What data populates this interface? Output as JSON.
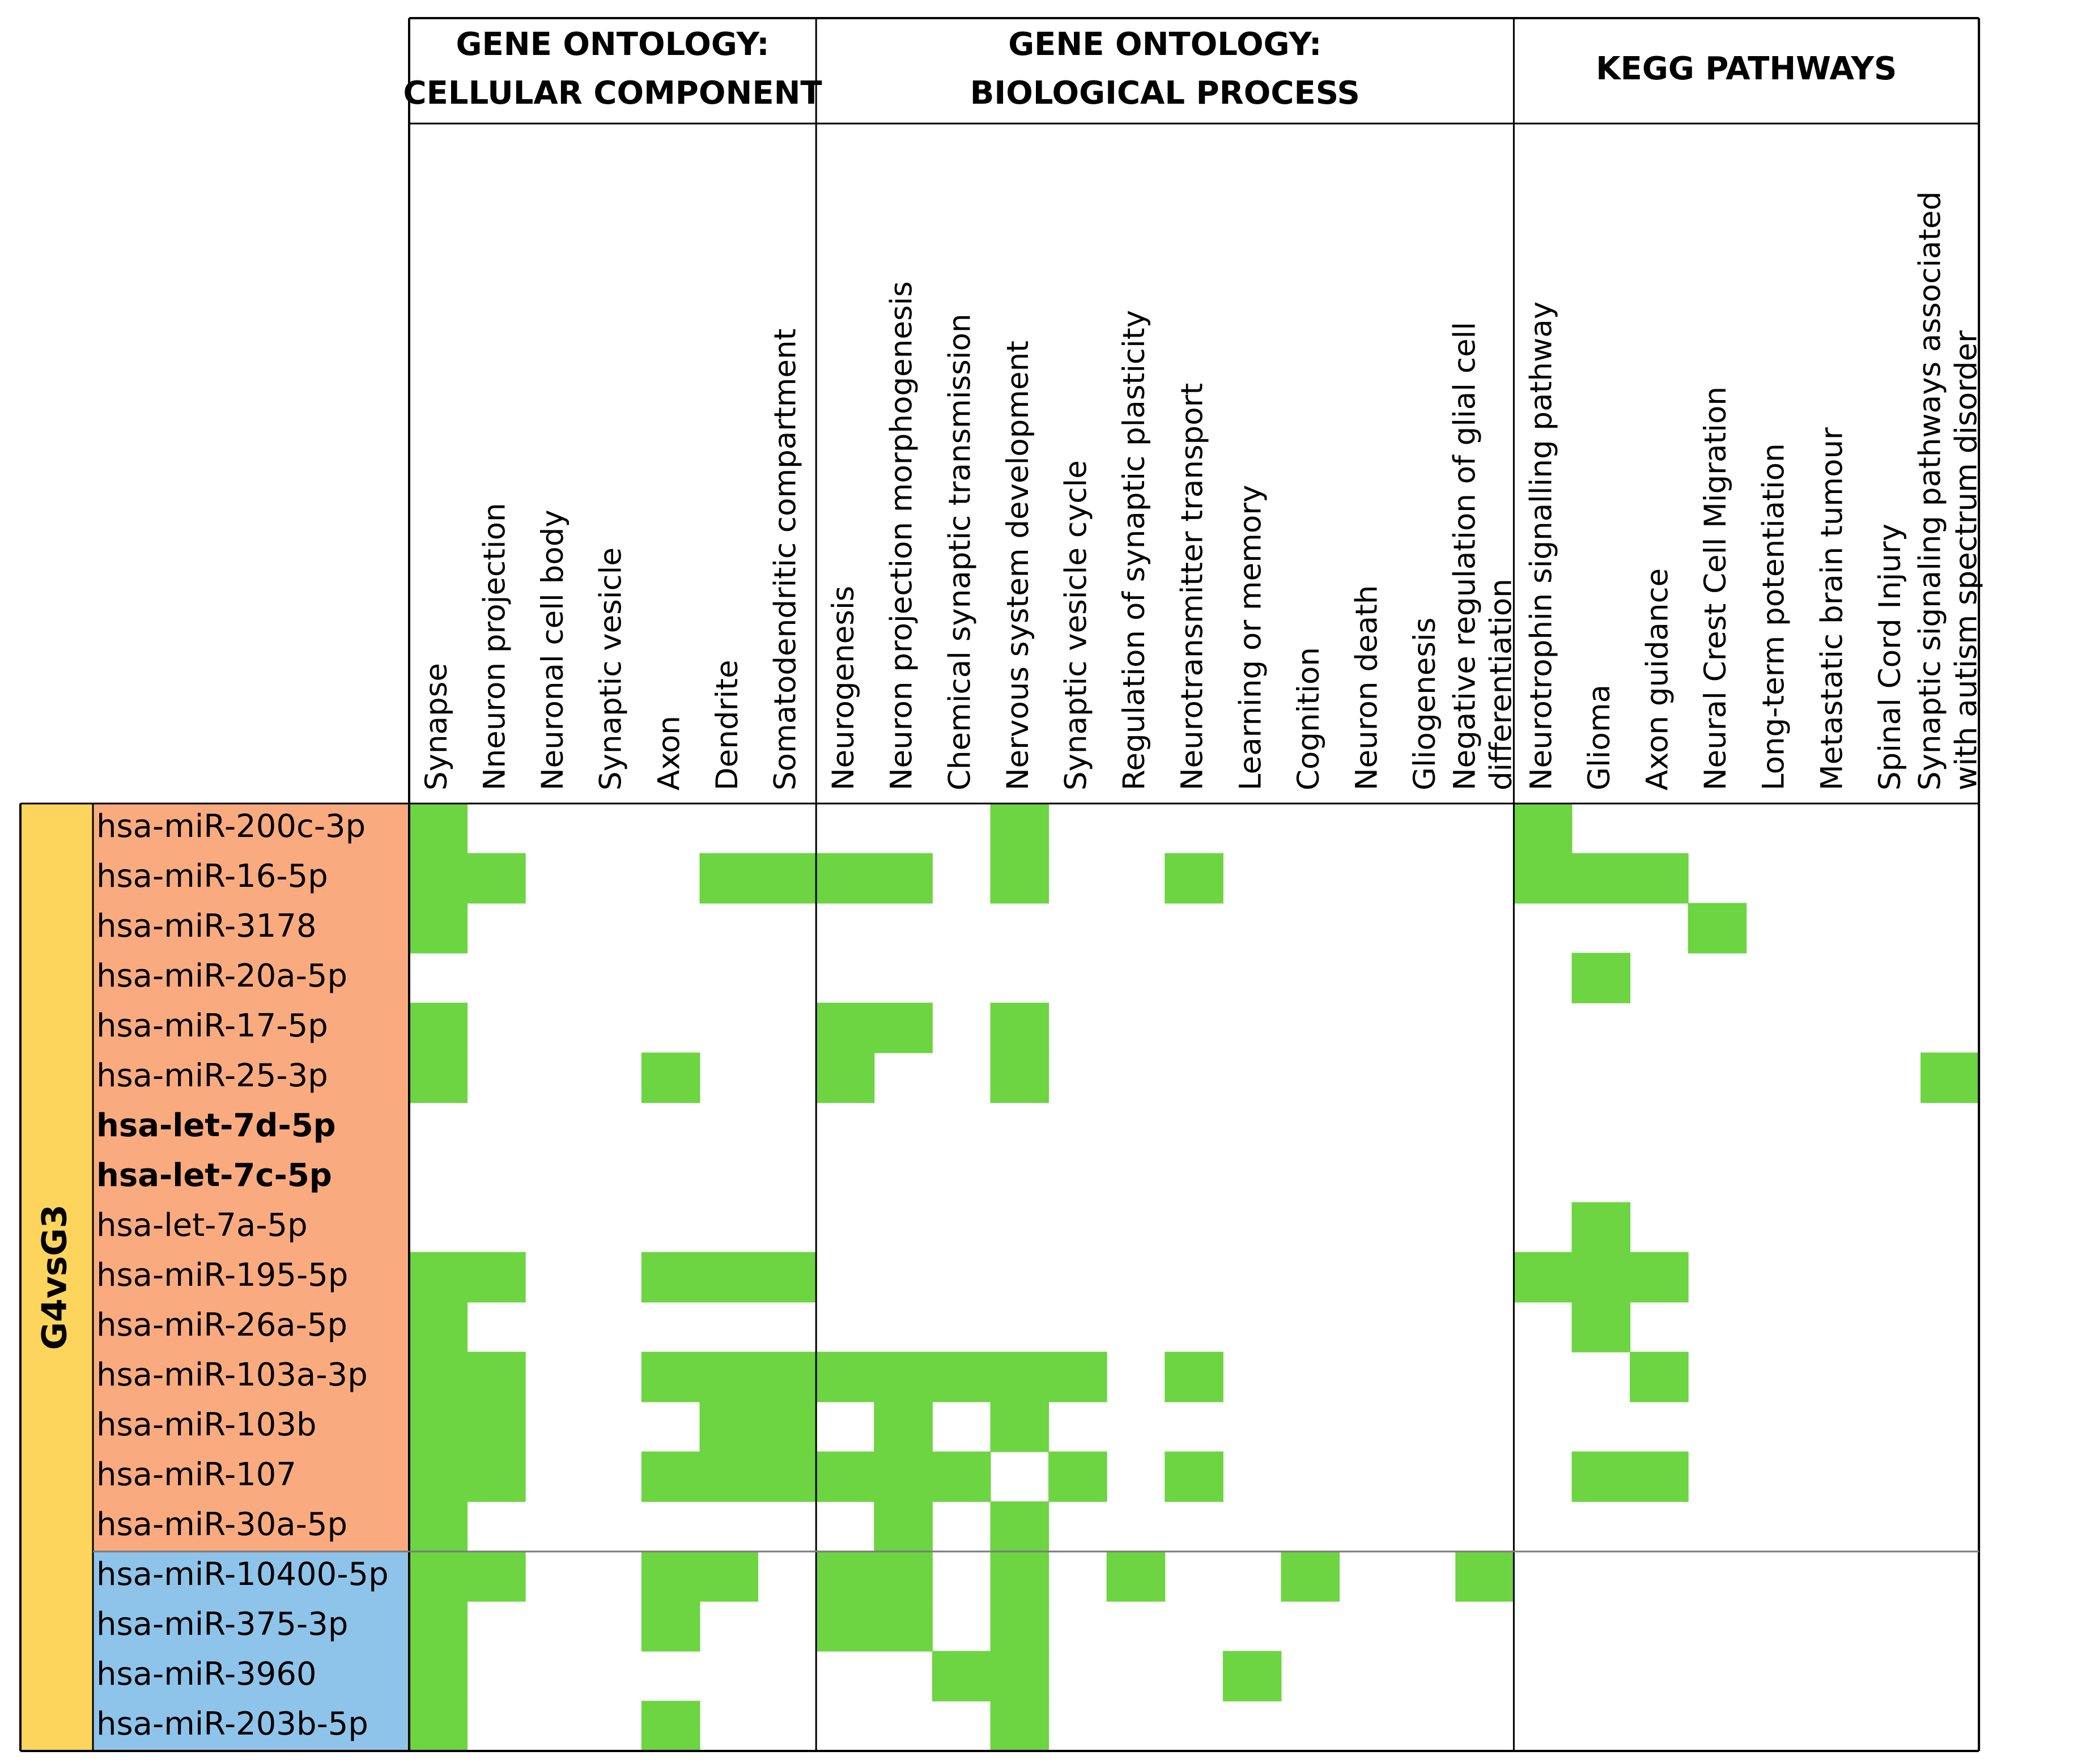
{
  "chart_data": {
    "type": "heatmap",
    "colors": {
      "hit": "#6dd442",
      "upper_rows": "#f9ab7f",
      "lower_rows": "#8fc4ea",
      "group_band": "#fdd55c",
      "highlight_text": "#ff0000"
    },
    "group_label": "G4vsG3",
    "column_groups": [
      {
        "title_lines": [
          "GENE ONTOLOGY:",
          "CELLULAR COMPONENT"
        ],
        "columns": [
          "Synapse",
          "Nneuron projection",
          "Neuronal cell body",
          "Synaptic vesicle",
          "Axon",
          "Dendrite",
          "Somatodendritic compartment"
        ]
      },
      {
        "title_lines": [
          "GENE ONTOLOGY:",
          "BIOLOGICAL PROCESS"
        ],
        "columns": [
          "Neurogenesis",
          "Neuron projection morphogenesis",
          "Chemical synaptic transmission",
          "Nervous system development",
          "Synaptic vesicle cycle",
          "Regulation of synaptic plasticity",
          "Neurotransmitter transport",
          "Learning or memory",
          "Cognition",
          "Neuron death",
          "Gliogenesis",
          "Negative regulation of glial cell differentiation"
        ]
      },
      {
        "title_lines": [
          "KEGG PATHWAYS"
        ],
        "columns": [
          "Neurotrophin signalling pathway",
          "Glioma",
          "Axon guidance",
          "Neural Crest Cell Migration",
          "Long-term potentiation",
          "Metastatic brain tumour",
          "Spinal Cord Injury",
          "Synaptic signaling pathways associated with autism spectrum disorder"
        ]
      }
    ],
    "column_label_lines": [
      [
        "Synapse"
      ],
      [
        "Nneuron projection"
      ],
      [
        "Neuronal cell body"
      ],
      [
        "Synaptic vesicle"
      ],
      [
        "Axon"
      ],
      [
        "Dendrite"
      ],
      [
        "Somatodendritic compartment"
      ],
      [
        "Neurogenesis"
      ],
      [
        "Neuron projection morphogenesis"
      ],
      [
        "Chemical synaptic transmission"
      ],
      [
        "Nervous system development"
      ],
      [
        "Synaptic vesicle cycle"
      ],
      [
        "Regulation of synaptic plasticity"
      ],
      [
        "Neurotransmitter transport"
      ],
      [
        "Learning or memory"
      ],
      [
        "Cognition"
      ],
      [
        "Neuron death"
      ],
      [
        "Gliogenesis"
      ],
      [
        "Negative regulation of glial cell",
        "differentiation"
      ],
      [
        "Neurotrophin signalling pathway"
      ],
      [
        "Glioma"
      ],
      [
        "Axon guidance"
      ],
      [
        "Neural Crest Cell Migration"
      ],
      [
        "Long-term potentiation"
      ],
      [
        "Metastatic brain tumour"
      ],
      [
        "Spinal Cord Injury"
      ],
      [
        "Synaptic signaling pathways associated",
        "with autism spectrum disorder"
      ]
    ],
    "rows": [
      {
        "label": "hsa-miR-200c-3p",
        "cluster": "upper",
        "highlight": false
      },
      {
        "label": "hsa-miR-16-5p",
        "cluster": "upper",
        "highlight": false
      },
      {
        "label": "hsa-miR-3178",
        "cluster": "upper",
        "highlight": false
      },
      {
        "label": "hsa-miR-20a-5p",
        "cluster": "upper",
        "highlight": false
      },
      {
        "label": "hsa-miR-17-5p",
        "cluster": "upper",
        "highlight": false
      },
      {
        "label": "hsa-miR-25-3p",
        "cluster": "upper",
        "highlight": false
      },
      {
        "label": "hsa-let-7d-5p",
        "cluster": "upper",
        "highlight": true
      },
      {
        "label": "hsa-let-7c-5p",
        "cluster": "upper",
        "highlight": true
      },
      {
        "label": "hsa-let-7a-5p",
        "cluster": "upper",
        "highlight": false
      },
      {
        "label": "hsa-miR-195-5p",
        "cluster": "upper",
        "highlight": false
      },
      {
        "label": "hsa-miR-26a-5p",
        "cluster": "upper",
        "highlight": false
      },
      {
        "label": "hsa-miR-103a-3p",
        "cluster": "upper",
        "highlight": false
      },
      {
        "label": "hsa-miR-103b",
        "cluster": "upper",
        "highlight": false
      },
      {
        "label": "hsa-miR-107",
        "cluster": "upper",
        "highlight": false
      },
      {
        "label": "hsa-miR-30a-5p",
        "cluster": "upper",
        "highlight": false
      },
      {
        "label": "hsa-miR-10400-5p",
        "cluster": "lower",
        "highlight": false
      },
      {
        "label": "hsa-miR-375-3p",
        "cluster": "lower",
        "highlight": false
      },
      {
        "label": "hsa-miR-3960",
        "cluster": "lower",
        "highlight": false
      },
      {
        "label": "hsa-miR-203b-5p",
        "cluster": "lower",
        "highlight": false
      }
    ],
    "matrix": [
      [
        1,
        0,
        0,
        0,
        0,
        0,
        0,
        0,
        0,
        0,
        1,
        0,
        0,
        0,
        0,
        0,
        0,
        0,
        0,
        1,
        0,
        0,
        0,
        0,
        0,
        0,
        0
      ],
      [
        1,
        1,
        0,
        0,
        0,
        1,
        1,
        1,
        1,
        0,
        1,
        0,
        0,
        1,
        0,
        0,
        0,
        0,
        0,
        1,
        1,
        1,
        0,
        0,
        0,
        0,
        0
      ],
      [
        1,
        0,
        0,
        0,
        0,
        0,
        0,
        0,
        0,
        0,
        0,
        0,
        0,
        0,
        0,
        0,
        0,
        0,
        0,
        0,
        0,
        0,
        1,
        0,
        0,
        0,
        0
      ],
      [
        0,
        0,
        0,
        0,
        0,
        0,
        0,
        0,
        0,
        0,
        0,
        0,
        0,
        0,
        0,
        0,
        0,
        0,
        0,
        0,
        1,
        0,
        0,
        0,
        0,
        0,
        0
      ],
      [
        1,
        0,
        0,
        0,
        0,
        0,
        0,
        1,
        1,
        0,
        1,
        0,
        0,
        0,
        0,
        0,
        0,
        0,
        0,
        0,
        0,
        0,
        0,
        0,
        0,
        0,
        0
      ],
      [
        1,
        0,
        0,
        0,
        1,
        0,
        0,
        1,
        0,
        0,
        1,
        0,
        0,
        0,
        0,
        0,
        0,
        0,
        0,
        0,
        0,
        0,
        0,
        0,
        0,
        0,
        1
      ],
      [
        0,
        0,
        0,
        0,
        0,
        0,
        0,
        0,
        0,
        0,
        0,
        0,
        0,
        0,
        0,
        0,
        0,
        0,
        0,
        0,
        0,
        0,
        0,
        0,
        0,
        0,
        0
      ],
      [
        0,
        0,
        0,
        0,
        0,
        0,
        0,
        0,
        0,
        0,
        0,
        0,
        0,
        0,
        0,
        0,
        0,
        0,
        0,
        0,
        0,
        0,
        0,
        0,
        0,
        0,
        0
      ],
      [
        0,
        0,
        0,
        0,
        0,
        0,
        0,
        0,
        0,
        0,
        0,
        0,
        0,
        0,
        0,
        0,
        0,
        0,
        0,
        0,
        1,
        0,
        0,
        0,
        0,
        0,
        0
      ],
      [
        1,
        1,
        0,
        0,
        1,
        1,
        1,
        0,
        0,
        0,
        0,
        0,
        0,
        0,
        0,
        0,
        0,
        0,
        0,
        1,
        1,
        1,
        0,
        0,
        0,
        0,
        0
      ],
      [
        1,
        0,
        0,
        0,
        0,
        0,
        0,
        0,
        0,
        0,
        0,
        0,
        0,
        0,
        0,
        0,
        0,
        0,
        0,
        0,
        1,
        0,
        0,
        0,
        0,
        0,
        0
      ],
      [
        1,
        1,
        0,
        0,
        1,
        1,
        1,
        1,
        1,
        1,
        1,
        1,
        0,
        1,
        0,
        0,
        0,
        0,
        0,
        0,
        0,
        1,
        0,
        0,
        0,
        0,
        0
      ],
      [
        1,
        1,
        0,
        0,
        0,
        1,
        1,
        0,
        1,
        0,
        1,
        0,
        0,
        0,
        0,
        0,
        0,
        0,
        0,
        0,
        0,
        0,
        0,
        0,
        0,
        0,
        0
      ],
      [
        1,
        1,
        0,
        0,
        1,
        1,
        1,
        1,
        1,
        1,
        0,
        1,
        0,
        1,
        0,
        0,
        0,
        0,
        0,
        0,
        1,
        1,
        0,
        0,
        0,
        0,
        0
      ],
      [
        1,
        0,
        0,
        0,
        0,
        0,
        0,
        0,
        1,
        0,
        1,
        0,
        0,
        0,
        0,
        0,
        0,
        0,
        0,
        0,
        0,
        0,
        0,
        0,
        0,
        0,
        0
      ],
      [
        1,
        1,
        0,
        0,
        1,
        1,
        0,
        1,
        1,
        0,
        1,
        0,
        1,
        0,
        0,
        1,
        0,
        0,
        1,
        0,
        0,
        0,
        0,
        0,
        0,
        0,
        0
      ],
      [
        1,
        0,
        0,
        0,
        1,
        0,
        0,
        1,
        1,
        0,
        1,
        0,
        0,
        0,
        0,
        0,
        0,
        0,
        0,
        0,
        0,
        0,
        0,
        0,
        0,
        0,
        0
      ],
      [
        1,
        0,
        0,
        0,
        0,
        0,
        0,
        0,
        0,
        1,
        1,
        0,
        0,
        0,
        1,
        0,
        0,
        0,
        0,
        0,
        0,
        0,
        0,
        0,
        0,
        0,
        0
      ],
      [
        1,
        0,
        0,
        0,
        1,
        0,
        0,
        0,
        0,
        0,
        1,
        0,
        0,
        0,
        0,
        0,
        0,
        0,
        0,
        0,
        0,
        0,
        0,
        0,
        0,
        0,
        0
      ]
    ]
  }
}
